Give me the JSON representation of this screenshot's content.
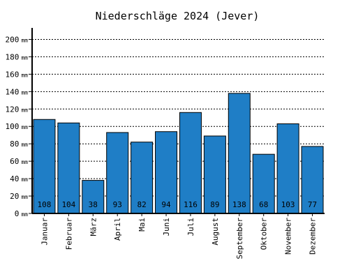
{
  "chart_data": {
    "type": "bar",
    "title": "Niederschläge 2024 (Jever)",
    "categories": [
      "Januar",
      "Februar",
      "März",
      "April",
      "Mai",
      "Juni",
      "Juli",
      "August",
      "September",
      "Oktober",
      "November",
      "Dezember"
    ],
    "values": [
      108,
      104,
      38,
      93,
      82,
      94,
      116,
      89,
      138,
      68,
      103,
      77
    ],
    "y_unit": "mm",
    "ylim": [
      0,
      210
    ],
    "yticks": [
      0,
      20,
      40,
      60,
      80,
      100,
      120,
      140,
      160,
      180,
      200
    ],
    "grid": true,
    "bar_color": "#1f7ec6",
    "value_labels_inside_bar_base": true
  }
}
